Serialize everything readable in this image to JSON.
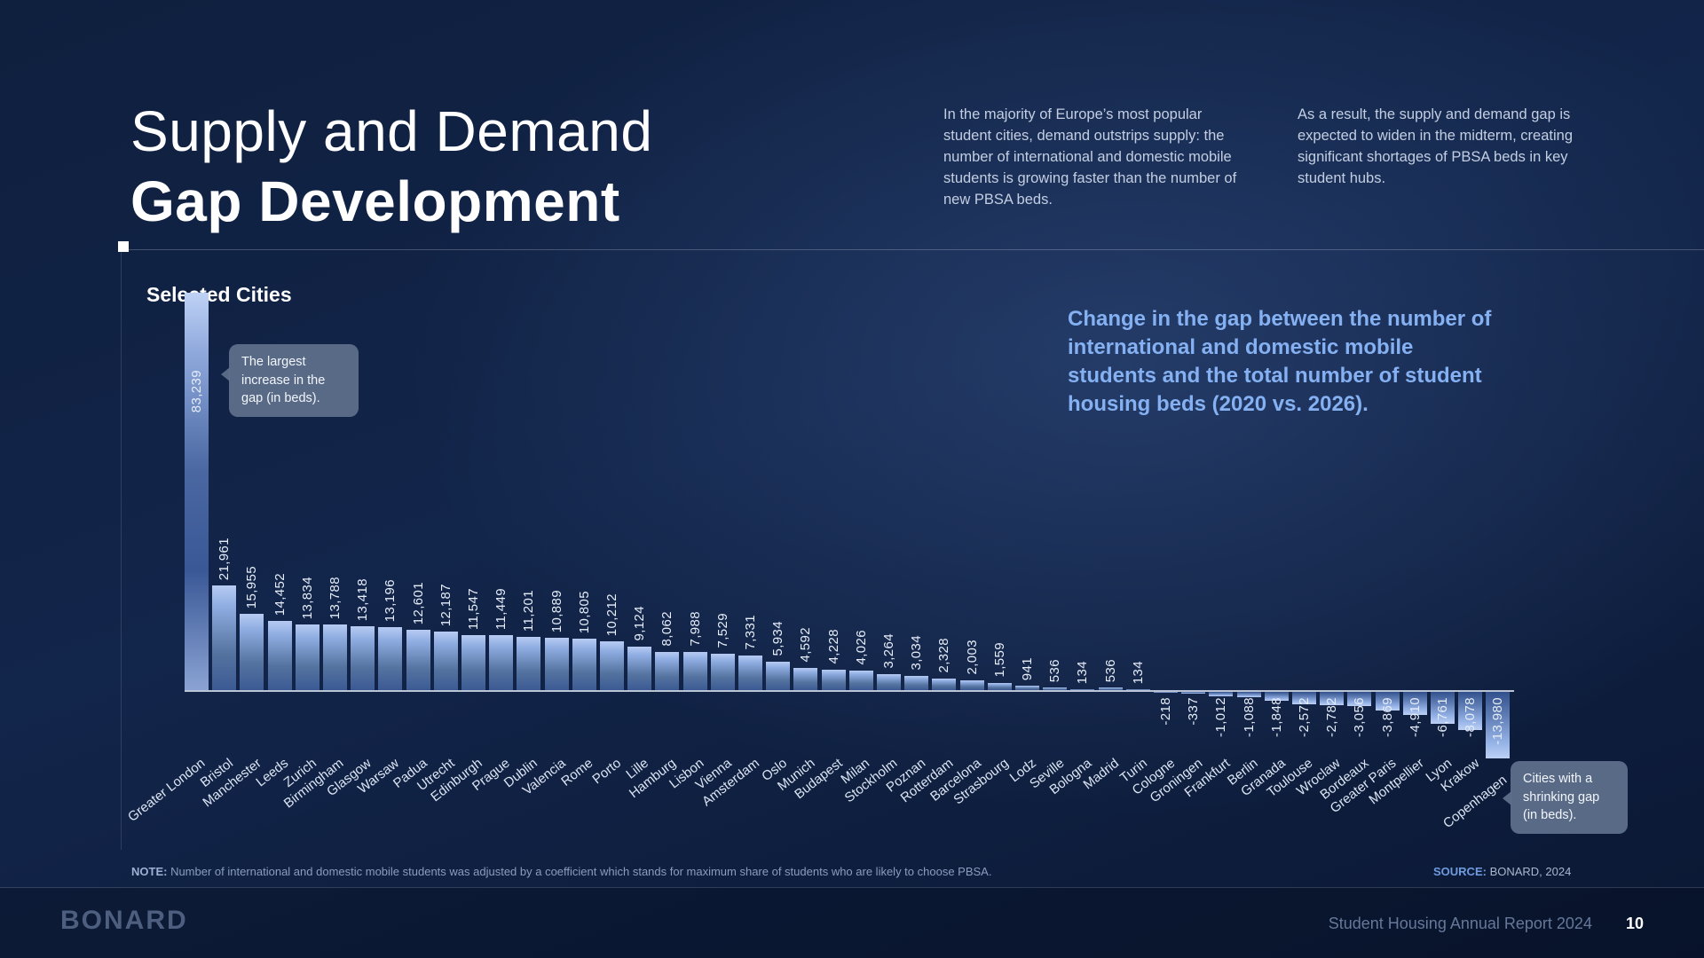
{
  "header": {
    "title_line1": "Supply and Demand",
    "title_line2": "Gap Development",
    "intro_paragraph_1": "In the majority of Europe’s most popular student cities, demand outstrips supply: the number of international and domestic mobile students is growing faster than the number of new PBSA beds.",
    "intro_paragraph_2": "As a result, the supply and demand gap is expected to widen in the midterm, creating significant shortages of PBSA beds in key student hubs."
  },
  "chart_section": {
    "subtitle": "Selected Cities",
    "description": "Change in the gap between the number of international and domestic mobile students and the total number of student housing beds (2020 vs. 2026).",
    "tooltip_largest": "The largest increase in the gap (in beds).",
    "tooltip_shrinking": "Cities with a shrinking gap (in beds)."
  },
  "chart_data": {
    "type": "bar",
    "title": "Selected Cities",
    "xlabel": "",
    "ylabel": "Change in gap (beds), 2020 vs. 2026",
    "ylim": [
      -14000,
      84000
    ],
    "grid": false,
    "legend_position": "none",
    "categories": [
      "Greater London",
      "Bristol",
      "Manchester",
      "Leeds",
      "Zurich",
      "Birmingham",
      "Glasgow",
      "Warsaw",
      "Padua",
      "Utrecht",
      "Edinburgh",
      "Prague",
      "Dublin",
      "Valencia",
      "Rome",
      "Porto",
      "Lille",
      "Hamburg",
      "Lisbon",
      "Vienna",
      "Amsterdam",
      "Oslo",
      "Munich",
      "Budapest",
      "Milan",
      "Stockholm",
      "Poznan",
      "Rotterdam",
      "Barcelona",
      "Strasbourg",
      "Lodz",
      "Seville",
      "Bologna",
      "Madrid",
      "Turin",
      "Cologne",
      "Groningen",
      "Frankfurt",
      "Berlin",
      "Granada",
      "Toulouse",
      "Wroclaw",
      "Bordeaux",
      "Greater Paris",
      "Montpellier",
      "Lyon",
      "Krakow",
      "Copenhagen"
    ],
    "values": [
      83239,
      21961,
      15955,
      14452,
      13834,
      13788,
      13418,
      13196,
      12601,
      12187,
      11547,
      11449,
      11201,
      10889,
      10805,
      10212,
      9124,
      8062,
      7988,
      7529,
      7331,
      5934,
      4592,
      4228,
      4026,
      3264,
      3034,
      2328,
      2003,
      1559,
      941,
      536,
      134,
      536,
      134,
      -218,
      -337,
      -1012,
      -1088,
      -1848,
      -2572,
      -2782,
      -3056,
      -3869,
      -4910,
      -6761,
      -8078,
      -13980
    ],
    "value_labels": [
      "83,239",
      "21,961",
      "15,955",
      "14,452",
      "13,834",
      "13,788",
      "13,418",
      "13,196",
      "12,601",
      "12,187",
      "11,547",
      "11,449",
      "11,201",
      "10,889",
      "10,805",
      "10,212",
      "9,124",
      "8,062",
      "7,988",
      "7,529",
      "7,331",
      "5,934",
      "4,592",
      "4,228",
      "4,026",
      "3,264",
      "3,034",
      "2,328",
      "2,003",
      "1,559",
      "941",
      "536",
      "134",
      "536",
      "134",
      "-218",
      "-337",
      "-1,012",
      "-1,088",
      "-1,848",
      "-2,572",
      "-2,782",
      "-3,056",
      "-3,869",
      "-4,910",
      "-6,761",
      "-8,078",
      "-13,980"
    ]
  },
  "colors": {
    "background_navy": "#0f1f3e",
    "accent_text_blue": "#85b1f2",
    "bar_light": "#b7cbf3",
    "bar_dark": "#3b5a94",
    "tooltip_bg": "#60718d",
    "axis_line": "#d7e0ef"
  },
  "note": {
    "label": "NOTE:",
    "text": " Number of international and domestic mobile students was adjusted by a coefficient which stands for maximum share of students who are likely to choose PBSA."
  },
  "source": {
    "label": "SOURCE:",
    "text": " BONARD, 2024"
  },
  "footer": {
    "logo": "BONARD",
    "report_title": "Student Housing Annual Report 2024",
    "page_number": "10"
  }
}
